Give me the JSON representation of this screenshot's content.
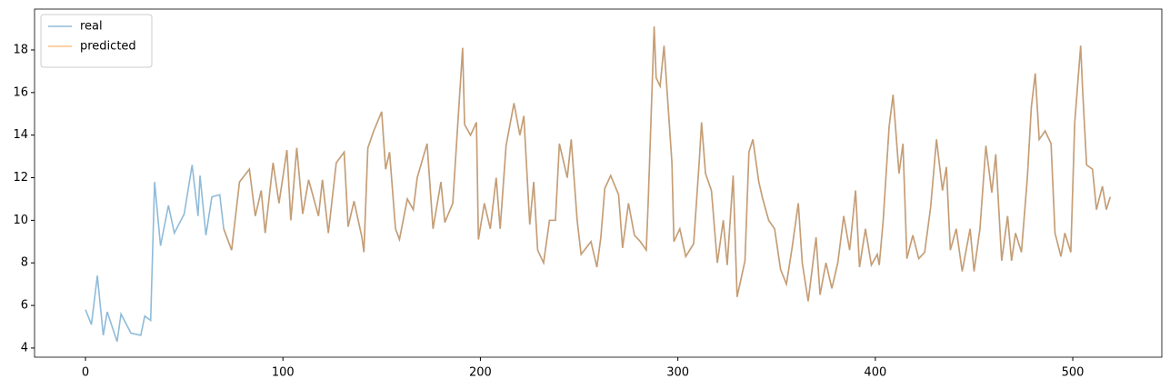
{
  "chart_data": {
    "type": "line",
    "xlim": [
      -25.8,
      545.1
    ],
    "ylim": [
      3.57,
      19.92
    ],
    "xticks": [
      0,
      100,
      200,
      300,
      400,
      500
    ],
    "yticks": [
      4,
      6,
      8,
      10,
      12,
      14,
      16,
      18
    ],
    "legend": "upper left",
    "series": [
      {
        "name": "real",
        "color": "#1f77b4",
        "x": [
          0,
          3,
          6,
          9,
          11,
          16,
          18,
          23,
          28,
          30,
          33,
          35,
          38,
          42,
          45,
          50,
          54,
          57,
          58,
          61,
          64,
          68,
          70,
          74,
          78,
          83,
          86,
          89,
          91,
          95,
          98,
          102,
          104,
          107,
          110,
          113,
          118,
          120,
          123,
          127,
          131,
          133,
          136,
          140,
          141,
          143,
          146,
          150,
          152,
          154,
          157,
          159,
          163,
          166,
          168,
          173,
          176,
          180,
          182,
          186,
          191,
          192,
          195,
          198,
          199,
          202,
          205,
          208,
          210,
          213,
          217,
          220,
          222,
          225,
          227,
          229,
          232,
          235,
          238,
          240,
          244,
          246,
          249,
          251,
          256,
          259,
          261,
          263,
          266,
          270,
          272,
          275,
          278,
          281,
          284,
          285,
          288,
          289,
          291,
          293,
          297,
          298,
          301,
          304,
          308,
          311,
          312,
          314,
          317,
          320,
          323,
          325,
          328,
          330,
          334,
          336,
          338,
          341,
          343,
          346,
          349,
          352,
          355,
          358,
          361,
          363,
          366,
          370,
          372,
          375,
          378,
          381,
          384,
          387,
          390,
          392,
          395,
          398,
          401,
          402,
          404,
          407,
          409,
          412,
          414,
          416,
          419,
          422,
          425,
          428,
          431,
          434,
          436,
          438,
          441,
          444,
          448,
          450,
          453,
          456,
          459,
          461,
          464,
          467,
          469,
          471,
          474,
          477,
          479,
          481,
          483,
          486,
          489,
          491,
          494,
          496,
          499,
          501,
          504,
          505,
          507,
          510,
          512,
          515,
          517,
          519
        ],
        "values": [
          5.8,
          5.1,
          7.4,
          4.6,
          5.7,
          4.3,
          5.6,
          4.7,
          4.6,
          5.5,
          5.3,
          11.8,
          8.8,
          10.7,
          9.4,
          10.3,
          12.6,
          10.2,
          12.1,
          9.3,
          11.1,
          11.2,
          9.6,
          8.6,
          11.8,
          12.4,
          10.2,
          11.4,
          9.4,
          12.7,
          10.8,
          13.3,
          10.0,
          13.4,
          10.3,
          11.9,
          10.2,
          11.9,
          9.4,
          12.7,
          13.2,
          9.7,
          10.9,
          9.2,
          8.5,
          13.4,
          14.2,
          15.1,
          12.4,
          13.2,
          9.6,
          9.1,
          11.0,
          10.5,
          12.0,
          13.6,
          9.6,
          11.8,
          9.9,
          10.8,
          18.1,
          14.5,
          14.0,
          14.6,
          9.1,
          10.8,
          9.6,
          12.0,
          9.6,
          13.5,
          15.5,
          14.0,
          14.9,
          9.8,
          11.8,
          8.6,
          8.0,
          10.0,
          10.0,
          13.6,
          12.0,
          13.8,
          10.0,
          8.4,
          9.0,
          7.8,
          9.2,
          11.5,
          12.1,
          11.2,
          8.7,
          10.8,
          9.3,
          9.0,
          8.6,
          10.9,
          19.1,
          16.7,
          16.3,
          18.2,
          12.7,
          9.0,
          9.6,
          8.3,
          8.9,
          13.0,
          14.6,
          12.2,
          11.4,
          8.0,
          10.0,
          7.9,
          12.1,
          6.4,
          8.1,
          13.2,
          13.8,
          11.8,
          11.0,
          10.0,
          9.6,
          7.7,
          7.0,
          8.8,
          10.8,
          8.0,
          6.2,
          9.2,
          6.5,
          8.0,
          6.8,
          8.0,
          10.2,
          8.6,
          11.4,
          7.8,
          9.6,
          7.9,
          8.4,
          7.9,
          10.0,
          14.4,
          15.9,
          12.2,
          13.6,
          8.2,
          9.3,
          8.2,
          8.5,
          10.6,
          13.8,
          11.4,
          12.5,
          8.6,
          9.6,
          7.6,
          9.6,
          7.6,
          9.6,
          13.5,
          11.3,
          13.1,
          8.1,
          10.2,
          8.1,
          9.4,
          8.5,
          12.0,
          15.3,
          16.9,
          13.8,
          14.2,
          13.6,
          9.4,
          8.3,
          9.4,
          8.5,
          14.6,
          18.2,
          16.1,
          12.6,
          12.4,
          10.5,
          11.6,
          10.5,
          11.1
        ]
      },
      {
        "name": "predicted",
        "color": "#ff7f0e",
        "x": [
          70,
          74,
          78,
          83,
          86,
          89,
          91,
          95,
          98,
          102,
          104,
          107,
          110,
          113,
          118,
          120,
          123,
          127,
          131,
          133,
          136,
          140,
          141,
          143,
          146,
          150,
          152,
          154,
          157,
          159,
          163,
          166,
          168,
          173,
          176,
          180,
          182,
          186,
          191,
          192,
          195,
          198,
          199,
          202,
          205,
          208,
          210,
          213,
          217,
          220,
          222,
          225,
          227,
          229,
          232,
          235,
          238,
          240,
          244,
          246,
          249,
          251,
          256,
          259,
          261,
          263,
          266,
          270,
          272,
          275,
          278,
          281,
          284,
          285,
          288,
          289,
          291,
          293,
          297,
          298,
          301,
          304,
          308,
          311,
          312,
          314,
          317,
          320,
          323,
          325,
          328,
          330,
          334,
          336,
          338,
          341,
          343,
          346,
          349,
          352,
          355,
          358,
          361,
          363,
          366,
          370,
          372,
          375,
          378,
          381,
          384,
          387,
          390,
          392,
          395,
          398,
          401,
          402,
          404,
          407,
          409,
          412,
          414,
          416,
          419,
          422,
          425,
          428,
          431,
          434,
          436,
          438,
          441,
          444,
          448,
          450,
          453,
          456,
          459,
          461,
          464,
          467,
          469,
          471,
          474,
          477,
          479,
          481,
          483,
          486,
          489,
          491,
          494,
          496,
          499,
          501,
          504,
          505,
          507,
          510,
          512,
          515,
          517,
          519
        ],
        "values": [
          9.6,
          8.6,
          11.8,
          12.4,
          10.2,
          11.4,
          9.4,
          12.7,
          10.8,
          13.3,
          10.0,
          13.4,
          10.3,
          11.9,
          10.2,
          11.9,
          9.4,
          12.7,
          13.2,
          9.7,
          10.9,
          9.2,
          8.5,
          13.4,
          14.2,
          15.1,
          12.4,
          13.2,
          9.6,
          9.1,
          11.0,
          10.5,
          12.0,
          13.6,
          9.6,
          11.8,
          9.9,
          10.8,
          18.1,
          14.5,
          14.0,
          14.6,
          9.1,
          10.8,
          9.6,
          12.0,
          9.6,
          13.5,
          15.5,
          14.0,
          14.9,
          9.8,
          11.8,
          8.6,
          8.0,
          10.0,
          10.0,
          13.6,
          12.0,
          13.8,
          10.0,
          8.4,
          9.0,
          7.8,
          9.2,
          11.5,
          12.1,
          11.2,
          8.7,
          10.8,
          9.3,
          9.0,
          8.6,
          10.9,
          19.1,
          16.7,
          16.3,
          18.2,
          12.7,
          9.0,
          9.6,
          8.3,
          8.9,
          13.0,
          14.6,
          12.2,
          11.4,
          8.0,
          10.0,
          7.9,
          12.1,
          6.4,
          8.1,
          13.2,
          13.8,
          11.8,
          11.0,
          10.0,
          9.6,
          7.7,
          7.0,
          8.8,
          10.8,
          8.0,
          6.2,
          9.2,
          6.5,
          8.0,
          6.8,
          8.0,
          10.2,
          8.6,
          11.4,
          7.8,
          9.6,
          7.9,
          8.4,
          7.9,
          10.0,
          14.4,
          15.9,
          12.2,
          13.6,
          8.2,
          9.3,
          8.2,
          8.5,
          10.6,
          13.8,
          11.4,
          12.5,
          8.6,
          9.6,
          7.6,
          9.6,
          7.6,
          9.6,
          13.5,
          11.3,
          13.1,
          8.1,
          10.2,
          8.1,
          9.4,
          8.5,
          12.0,
          15.3,
          16.9,
          13.8,
          14.2,
          13.6,
          9.4,
          8.3,
          9.4,
          8.5,
          14.6,
          18.2,
          16.1,
          12.6,
          12.4,
          10.5,
          11.6,
          10.5,
          11.1
        ]
      }
    ]
  }
}
